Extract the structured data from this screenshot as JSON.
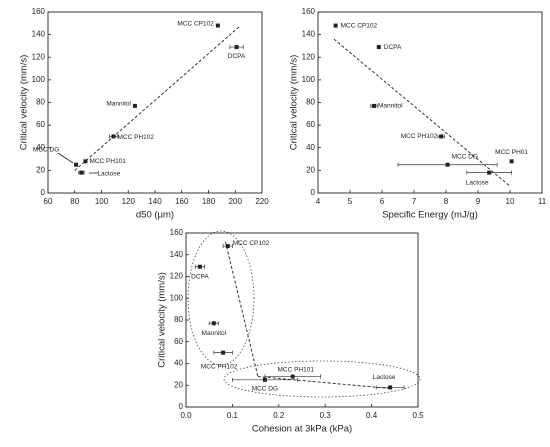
{
  "chart_data": [
    {
      "type": "scatter",
      "xlabel": "d50 (μm)",
      "ylabel": "Critical velocity (mm/s)",
      "xlim": [
        60,
        220
      ],
      "xticks": [
        60,
        80,
        100,
        120,
        140,
        160,
        180,
        200,
        220
      ],
      "ylim": [
        0,
        160
      ],
      "yticks": [
        0,
        20,
        40,
        60,
        80,
        100,
        120,
        140,
        160
      ],
      "labels": [
        "MCC CP102",
        "DCPA",
        "Mannitol",
        "MCC PH102",
        "MCC PH101",
        "MCC DG",
        "Lactose"
      ],
      "x": [
        187,
        201,
        125,
        109,
        88,
        81,
        85
      ],
      "y": [
        148,
        129,
        77,
        50,
        28,
        25,
        18
      ],
      "x_errors": [
        null,
        5,
        null,
        3,
        null,
        null,
        2
      ],
      "trendlines": [
        {
          "x": [
            80,
            203
          ],
          "y": [
            20,
            147
          ]
        }
      ]
    },
    {
      "type": "scatter",
      "xlabel": "Specific Energy (mJ/g)",
      "ylabel": "Critical velocity (mm/s)",
      "xlim": [
        4,
        11
      ],
      "xticks": [
        4,
        5,
        6,
        7,
        8,
        9,
        10,
        11
      ],
      "ylim": [
        0,
        160
      ],
      "yticks": [
        0,
        20,
        40,
        60,
        80,
        100,
        120,
        140,
        160
      ],
      "labels": [
        "MCC CP102",
        "DCPA",
        "Mannitol",
        "MCC PH102",
        "MCC DG",
        "Lactose",
        "MCC PH01"
      ],
      "x": [
        4.55,
        5.9,
        5.75,
        7.85,
        8.05,
        9.35,
        10.05
      ],
      "y": [
        148,
        129,
        77,
        50,
        25,
        18,
        28
      ],
      "x_errors": [
        null,
        null,
        0.1,
        0.1,
        1.55,
        0.7,
        null
      ],
      "trendlines": [
        {
          "x": [
            4.5,
            10
          ],
          "y": [
            136,
            6
          ]
        }
      ]
    },
    {
      "type": "scatter",
      "xlabel": "Cohesion at 3kPa (kPa)",
      "ylabel": "Critical velocity (mm/s)",
      "xlim": [
        0,
        0.5
      ],
      "xticks": [
        {
          "value": 0,
          "label": "0.0"
        },
        0.1,
        0.2,
        0.3,
        0.4,
        0.5
      ],
      "ylim": [
        0,
        160
      ],
      "yticks": [
        0,
        20,
        40,
        60,
        80,
        100,
        120,
        140,
        160
      ],
      "labels": [
        "MCC CP102",
        "DCPA",
        "Mannitol",
        "MCC PH102",
        "MCC DG",
        "MCC PH101",
        "Lactose"
      ],
      "x": [
        0.09,
        0.03,
        0.06,
        0.08,
        0.17,
        0.23,
        0.44
      ],
      "y": [
        148,
        129,
        77,
        50,
        25,
        28,
        18
      ],
      "x_errors": [
        0.01,
        0.01,
        0.01,
        0.02,
        0.07,
        0.06,
        0.03
      ],
      "trendlines": [
        {
          "x": [
            0.085,
            0.155
          ],
          "y": [
            152,
            28
          ]
        },
        {
          "x": [
            0.155,
            0.44
          ],
          "y": [
            28,
            17
          ]
        }
      ]
    }
  ]
}
